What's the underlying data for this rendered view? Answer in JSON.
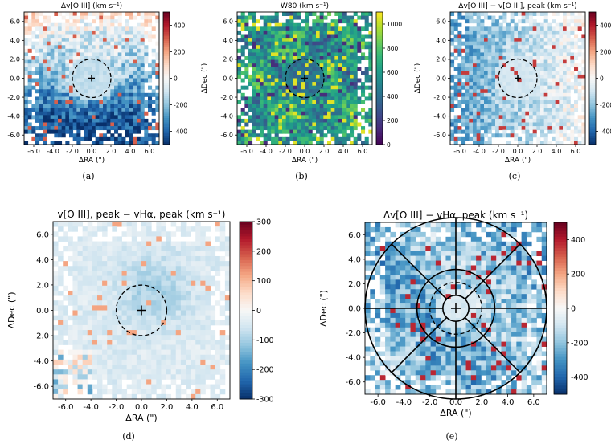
{
  "colormaps": {
    "diverging": [
      "#08306b",
      "#2166ac",
      "#4393c3",
      "#92c5de",
      "#d1e5f0",
      "#f7f7f7",
      "#fddbc7",
      "#f4a582",
      "#d6604d",
      "#b2182b",
      "#67001f"
    ],
    "viridis": [
      "#440154",
      "#482878",
      "#3e4989",
      "#31688e",
      "#26828e",
      "#1f9e89",
      "#35b779",
      "#6ece58",
      "#b5de2b",
      "#fde725"
    ]
  },
  "chart_data": [
    {
      "id": "a",
      "type": "heatmap",
      "title": "Δv[O III] (km s⁻¹)",
      "xlabel": "ΔRA (\")",
      "ylabel": "ΔDec (\")",
      "xlim": [
        -7,
        7
      ],
      "ylim": [
        -7,
        7
      ],
      "xticks": [
        "-6.0",
        "-4.0",
        "-2.0",
        "0.0",
        "2.0",
        "4.0",
        "6.0"
      ],
      "yticks": [
        "-6.0",
        "-4.0",
        "-2.0",
        "0.0",
        "2.0",
        "4.0",
        "6.0"
      ],
      "colormap": "diverging",
      "clim": [
        -500,
        500
      ],
      "colorbar_ticks": [
        "400",
        "200",
        "0",
        "-200",
        "-400"
      ],
      "colorbar_tick_values": [
        400,
        200,
        0,
        -200,
        -400
      ],
      "circle_radius_arcsec": 2.0,
      "caption": "(a)"
    },
    {
      "id": "b",
      "type": "heatmap",
      "title": "W80 (km s⁻¹)",
      "xlabel": "ΔRA (\")",
      "ylabel": "ΔDec (\")",
      "xlim": [
        -7,
        7
      ],
      "ylim": [
        -7,
        7
      ],
      "xticks": [
        "-6.0",
        "-4.0",
        "-2.0",
        "0.0",
        "2.0",
        "4.0",
        "6.0"
      ],
      "yticks": [
        "-6.0",
        "-4.0",
        "-2.0",
        "0.0",
        "2.0",
        "4.0",
        "6.0"
      ],
      "colormap": "viridis",
      "clim": [
        0,
        1100
      ],
      "colorbar_ticks": [
        "1000",
        "800",
        "600",
        "400",
        "200",
        "0"
      ],
      "colorbar_tick_values": [
        1000,
        800,
        600,
        400,
        200,
        0
      ],
      "circle_radius_arcsec": 2.0,
      "caption": "(b)"
    },
    {
      "id": "c",
      "type": "heatmap",
      "title": "Δv[O III] − v[O III], peak (km s⁻¹)",
      "xlabel": "ΔRA (\")",
      "ylabel": "ΔDec (\")",
      "xlim": [
        -7,
        7
      ],
      "ylim": [
        -7,
        7
      ],
      "xticks": [
        "-6.0",
        "-4.0",
        "-2.0",
        "0.0",
        "2.0",
        "4.0",
        "6.0"
      ],
      "yticks": [
        "-6.0",
        "-4.0",
        "-2.0",
        "0.0",
        "2.0",
        "4.0",
        "6.0"
      ],
      "colormap": "diverging",
      "clim": [
        -500,
        500
      ],
      "colorbar_ticks": [
        "400",
        "200",
        "0",
        "-200",
        "-400"
      ],
      "colorbar_tick_values": [
        400,
        200,
        0,
        -200,
        -400
      ],
      "circle_radius_arcsec": 2.0,
      "caption": "(c)"
    },
    {
      "id": "d",
      "type": "heatmap",
      "title": "v[O III], peak − vHα, peak (km s⁻¹)",
      "xlabel": "ΔRA (\")",
      "ylabel": "ΔDec (\")",
      "xlim": [
        -7,
        7
      ],
      "ylim": [
        -7,
        7
      ],
      "xticks": [
        "-6.0",
        "-4.0",
        "-2.0",
        "0.0",
        "2.0",
        "4.0",
        "6.0"
      ],
      "yticks": [
        "-6.0",
        "-4.0",
        "-2.0",
        "0.0",
        "2.0",
        "4.0",
        "6.0"
      ],
      "colormap": "diverging",
      "clim": [
        -300,
        300
      ],
      "colorbar_ticks": [
        "300",
        "200",
        "100",
        "0",
        "-100",
        "-200",
        "-300"
      ],
      "colorbar_tick_values": [
        300,
        200,
        100,
        0,
        -100,
        -200,
        -300
      ],
      "circle_radius_arcsec": 2.0,
      "caption": "(d)"
    },
    {
      "id": "e",
      "type": "heatmap",
      "title": "Δv[O III] − vHα, peak (km s⁻¹)",
      "xlabel": "ΔRA (\")",
      "ylabel": "ΔDec (\")",
      "xlim": [
        -7,
        7
      ],
      "ylim": [
        -7,
        7
      ],
      "xticks": [
        "-6.0",
        "-4.0",
        "-2.0",
        "0.0",
        "2.0",
        "4.0",
        "6.0"
      ],
      "yticks": [
        "-6.0",
        "-4.0",
        "-2.0",
        "0.0",
        "2.0",
        "4.0",
        "6.0"
      ],
      "colormap": "diverging",
      "clim": [
        -500,
        500
      ],
      "colorbar_ticks": [
        "400",
        "200",
        "0",
        "-200",
        "-400"
      ],
      "colorbar_tick_values": [
        400,
        200,
        0,
        -200,
        -400
      ],
      "circle_radius_arcsec": 2.0,
      "rings_arcsec": [
        1.0,
        3.0,
        7.0
      ],
      "sector_angles_deg": [
        0,
        45,
        90,
        135,
        180,
        225,
        270,
        315
      ],
      "caption": "(e)"
    }
  ]
}
